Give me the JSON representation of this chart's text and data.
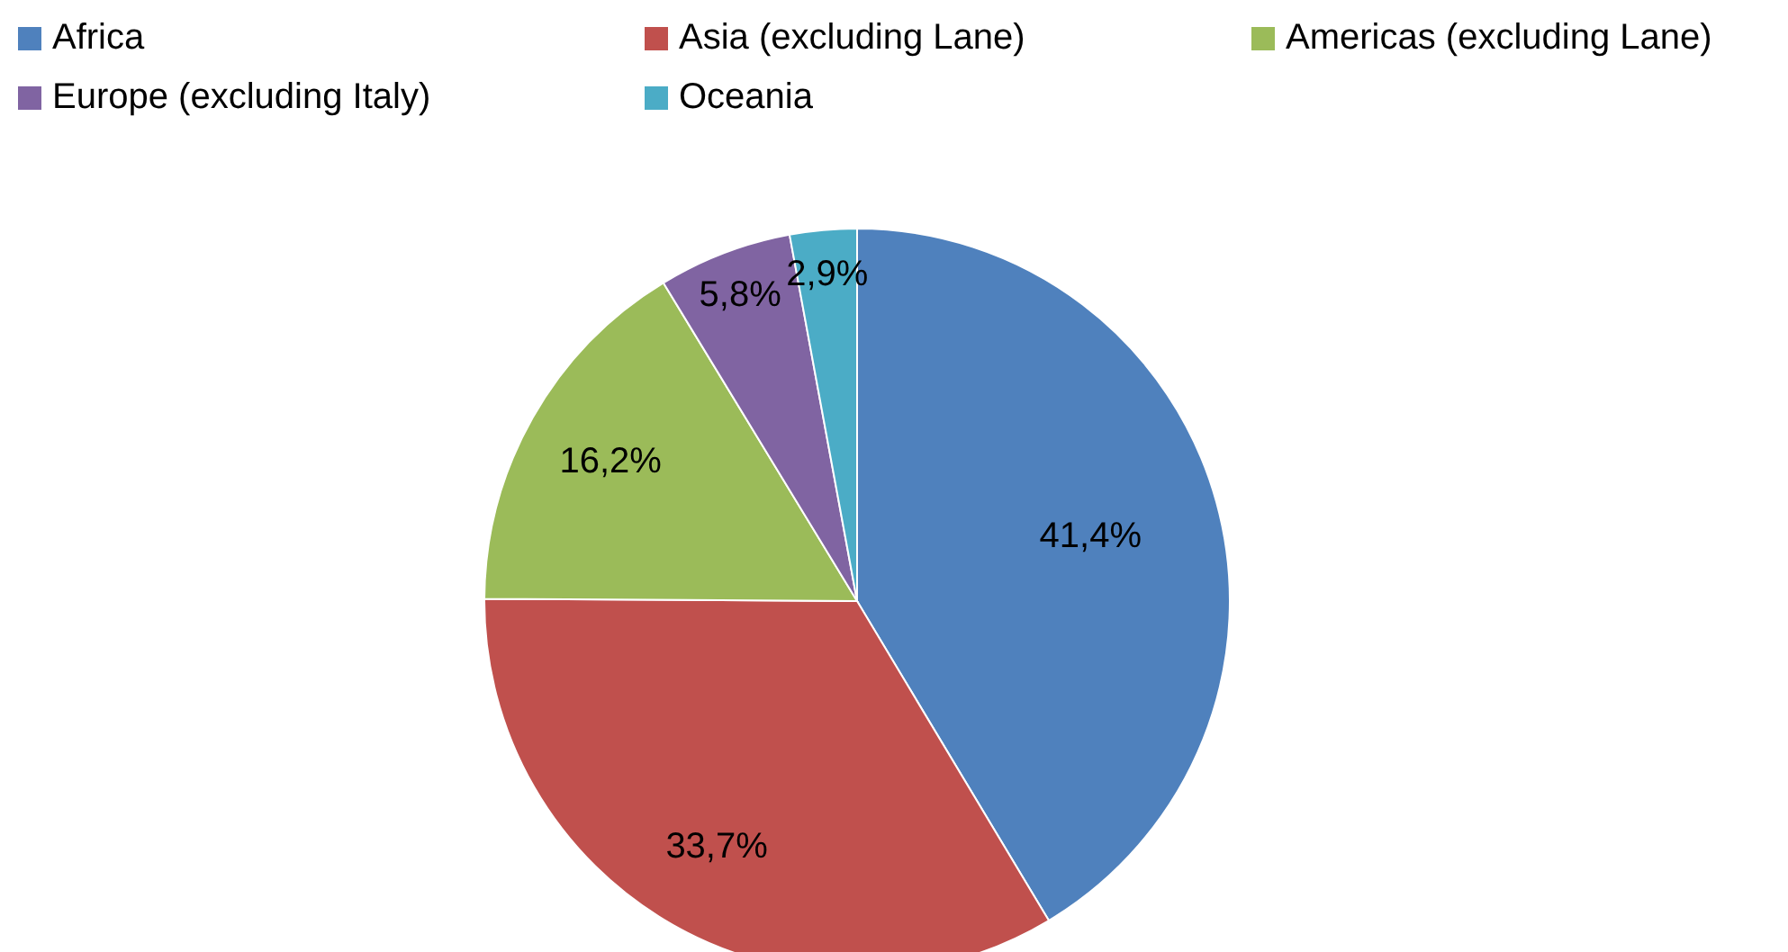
{
  "chart_data": {
    "type": "pie",
    "categories": [
      "Africa",
      "Asia (excluding Lane)",
      "Americas (excluding Lane)",
      "Europe (excluding Italy)",
      "Oceania"
    ],
    "values": [
      41.4,
      33.7,
      16.2,
      5.8,
      2.9
    ],
    "value_labels": [
      "41,4%",
      "33,7%",
      "16,2%",
      "5,8%",
      "2,9%"
    ],
    "colors": [
      "#4f81bd",
      "#c0504d",
      "#9bbb59",
      "#8064a2",
      "#4bacc6"
    ],
    "legend": "top"
  }
}
